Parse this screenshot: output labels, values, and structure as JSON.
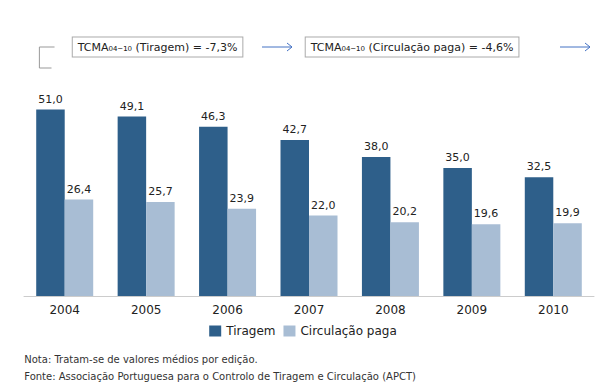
{
  "chart_data": {
    "type": "bar",
    "categories": [
      "2004",
      "2005",
      "2006",
      "2007",
      "2008",
      "2009",
      "2010"
    ],
    "series": [
      {
        "name": "Tiragem",
        "color": "#2E5F8A",
        "values": [
          51.0,
          49.1,
          46.3,
          42.7,
          38.0,
          35.0,
          32.5
        ],
        "value_labels": [
          "51,0",
          "49,1",
          "46,3",
          "42,7",
          "38,0",
          "35,0",
          "32,5"
        ]
      },
      {
        "name": "Circulação paga",
        "color": "#A8BDD4",
        "values": [
          26.4,
          25.7,
          23.9,
          22.0,
          20.2,
          19.6,
          19.9
        ],
        "value_labels": [
          "26,4",
          "25,7",
          "23,9",
          "22,0",
          "20,2",
          "19,6",
          "19,9"
        ]
      }
    ],
    "ylim": [
      0,
      58
    ],
    "data_labels": true,
    "legend": "bottom",
    "grid": false,
    "tick_labels": "x",
    "annotations": [
      "TCMA₀₄₋₁₀ (Tiragem) = -7,3%",
      "TCMA₀₄₋₁₀ (Circulação paga) = -4,6%",
      "Nota: Tratam-se de valores médios por edição.",
      "Fonte: Associação Portuguesa para o Controlo de Tiragem e Circulação (APCT)"
    ]
  }
}
